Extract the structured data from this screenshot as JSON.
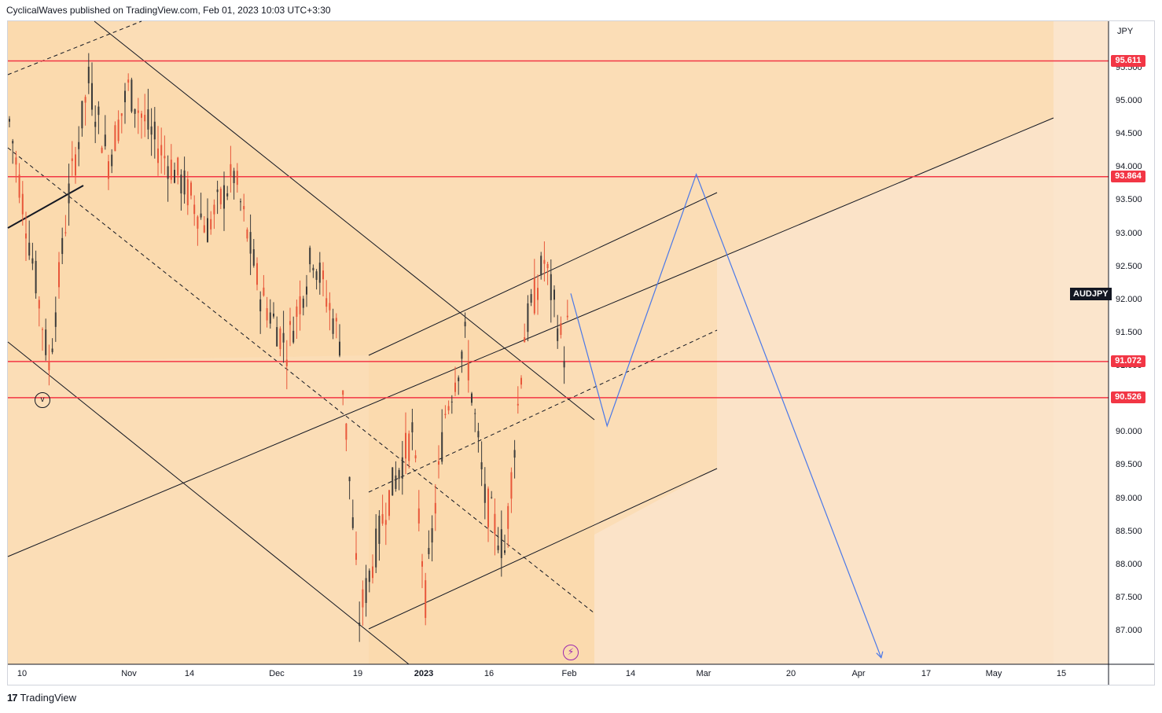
{
  "header": {
    "publish_text": "CyclicalWaves published on TradingView.com, Feb 01, 2023 10:03 UTC+3:30"
  },
  "footer": {
    "brand": "TradingView",
    "logo_text": "17"
  },
  "axis": {
    "currency": "JPY",
    "symbol": "AUDJPY",
    "price_ticks": [
      "95.500",
      "95.000",
      "94.500",
      "94.000",
      "93.500",
      "93.000",
      "92.500",
      "92.000",
      "91.500",
      "91.000",
      "90.500",
      "90.000",
      "89.500",
      "89.000",
      "88.500",
      "88.000",
      "87.500",
      "87.000"
    ],
    "time_ticks": [
      {
        "label": "10",
        "bold": false
      },
      {
        "label": "Nov",
        "bold": false
      },
      {
        "label": "14",
        "bold": false
      },
      {
        "label": "Dec",
        "bold": false
      },
      {
        "label": "19",
        "bold": false
      },
      {
        "label": "2023",
        "bold": true
      },
      {
        "label": "16",
        "bold": false
      },
      {
        "label": "Feb",
        "bold": false
      },
      {
        "label": "14",
        "bold": false
      },
      {
        "label": "Mar",
        "bold": false
      },
      {
        "label": "20",
        "bold": false
      },
      {
        "label": "Apr",
        "bold": false
      },
      {
        "label": "17",
        "bold": false
      },
      {
        "label": "May",
        "bold": false
      },
      {
        "label": "15",
        "bold": false
      }
    ]
  },
  "annotations": {
    "wave_label": "v",
    "lightning": "⚡"
  },
  "colors": {
    "level_line": "#f23645",
    "projection": "#4a78e8",
    "zone_dark": "#fbd7a8",
    "zone_light": "#fbe3c8",
    "candle_up": "#3a3a3a",
    "candle_down": "#e8573a"
  },
  "chart_data": {
    "type": "candlestick",
    "symbol": "AUDJPY",
    "price_range": [
      86.6,
      96.2
    ],
    "horizontal_levels": [
      {
        "label": "95.611",
        "value": 95.611
      },
      {
        "label": "93.864",
        "value": 93.864
      },
      {
        "label": "91.072",
        "value": 91.072
      },
      {
        "label": "90.526",
        "value": 90.526
      }
    ],
    "price_path": [
      {
        "t": 0,
        "p": 94.7
      },
      {
        "t": 8,
        "p": 92.3
      },
      {
        "t": 12,
        "p": 91.0
      },
      {
        "t": 18,
        "p": 93.6
      },
      {
        "t": 24,
        "p": 95.3
      },
      {
        "t": 30,
        "p": 94.1
      },
      {
        "t": 36,
        "p": 95.2
      },
      {
        "t": 44,
        "p": 94.4
      },
      {
        "t": 52,
        "p": 93.8
      },
      {
        "t": 60,
        "p": 93.1
      },
      {
        "t": 68,
        "p": 93.9
      },
      {
        "t": 76,
        "p": 92.1
      },
      {
        "t": 84,
        "p": 91.3
      },
      {
        "t": 92,
        "p": 92.7
      },
      {
        "t": 100,
        "p": 91.4
      },
      {
        "t": 106,
        "p": 87.2
      },
      {
        "t": 114,
        "p": 88.9
      },
      {
        "t": 122,
        "p": 90.0
      },
      {
        "t": 126,
        "p": 87.5
      },
      {
        "t": 132,
        "p": 90.3
      },
      {
        "t": 138,
        "p": 91.4
      },
      {
        "t": 144,
        "p": 89.0
      },
      {
        "t": 150,
        "p": 88.2
      },
      {
        "t": 156,
        "p": 91.5
      },
      {
        "t": 162,
        "p": 92.6
      },
      {
        "t": 168,
        "p": 91.2
      },
      {
        "t": 170,
        "p": 92.0
      }
    ],
    "projection_path": [
      {
        "t": 170,
        "p": 92.1
      },
      {
        "t": 181,
        "p": 90.1
      },
      {
        "t": 208,
        "p": 93.9
      },
      {
        "t": 264,
        "p": 86.6
      }
    ]
  }
}
